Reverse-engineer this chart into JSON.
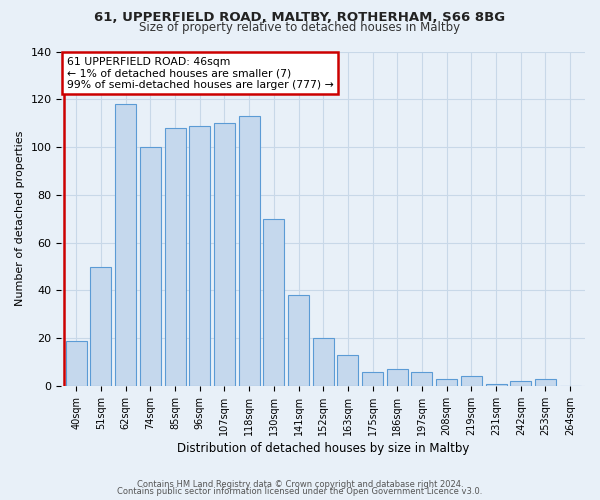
{
  "title1": "61, UPPERFIELD ROAD, MALTBY, ROTHERHAM, S66 8BG",
  "title2": "Size of property relative to detached houses in Maltby",
  "xlabel": "Distribution of detached houses by size in Maltby",
  "ylabel": "Number of detached properties",
  "categories": [
    "40sqm",
    "51sqm",
    "62sqm",
    "74sqm",
    "85sqm",
    "96sqm",
    "107sqm",
    "118sqm",
    "130sqm",
    "141sqm",
    "152sqm",
    "163sqm",
    "175sqm",
    "186sqm",
    "197sqm",
    "208sqm",
    "219sqm",
    "231sqm",
    "242sqm",
    "253sqm",
    "264sqm"
  ],
  "values": [
    19,
    50,
    118,
    100,
    108,
    109,
    110,
    113,
    70,
    38,
    20,
    13,
    6,
    7,
    6,
    3,
    4,
    1,
    2,
    3,
    0
  ],
  "bar_color": "#c5d8ed",
  "bar_edge_color": "#5b9bd5",
  "annotation_line1": "61 UPPERFIELD ROAD: 46sqm",
  "annotation_line2": "← 1% of detached houses are smaller (7)",
  "annotation_line3": "99% of semi-detached houses are larger (777) →",
  "annotation_box_color": "#ffffff",
  "annotation_box_edge_color": "#cc0000",
  "background_color": "#e8f0f8",
  "footer_text1": "Contains HM Land Registry data © Crown copyright and database right 2024.",
  "footer_text2": "Contains public sector information licensed under the Open Government Licence v3.0.",
  "ylim": [
    0,
    140
  ],
  "yticks": [
    0,
    20,
    40,
    60,
    80,
    100,
    120,
    140
  ]
}
